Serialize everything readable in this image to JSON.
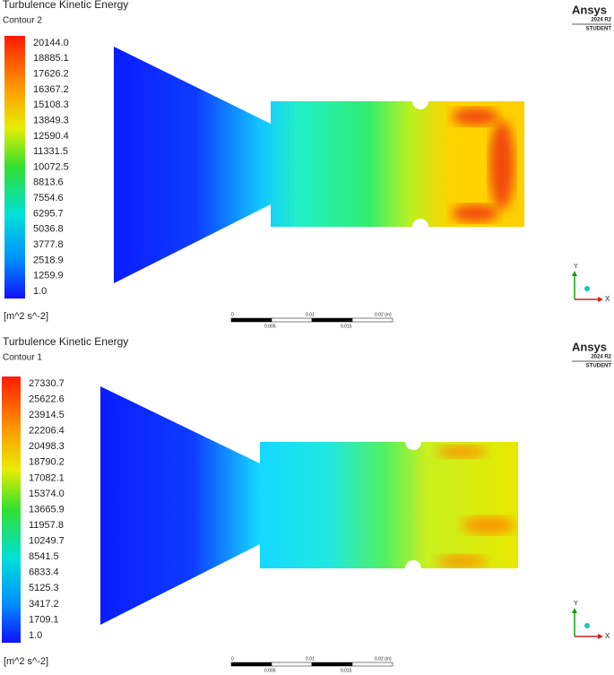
{
  "panels": [
    {
      "title": "Turbulence Kinetic Energy",
      "subtitle": "Contour 2",
      "legend_labels": [
        "20144.0",
        "18885.1",
        "17626.2",
        "16367.2",
        "15108.3",
        "13849.3",
        "12590.4",
        "11331.5",
        "10072.5",
        "8813.6",
        "7554.6",
        "6295.7",
        "5036.8",
        "3777.8",
        "2518.9",
        "1259.9",
        "1.0"
      ],
      "unit": "[m^2 s^-2]",
      "scale_labels": {
        "top": [
          "0",
          "0.01",
          "0.02 (m)"
        ],
        "bottom": [
          "0.005",
          "0.015"
        ]
      },
      "logo": {
        "brand": "Ansys",
        "version": "2024 R2",
        "edition": "STUDENT"
      },
      "axes": {
        "y": "Y",
        "x": "X"
      }
    },
    {
      "title": "Turbulence Kinetic Energy",
      "subtitle": "Contour 1",
      "legend_labels": [
        "27330.7",
        "25622.6",
        "23914.5",
        "22206.4",
        "20498.3",
        "18790.2",
        "17082.1",
        "15374.0",
        "13665.9",
        "11957.8",
        "10249.7",
        "8541.5",
        "6833.4",
        "5125.3",
        "3417.2",
        "1709.1",
        "1.0"
      ],
      "unit": "[m^2 s^-2]",
      "scale_labels": {
        "top": [
          "0",
          "0.01",
          "0.02 (m)"
        ],
        "bottom": [
          "0.005",
          "0.015"
        ]
      },
      "logo": {
        "brand": "Ansys",
        "version": "2024 R2",
        "edition": "STUDENT"
      },
      "axes": {
        "y": "Y",
        "x": "X"
      }
    }
  ]
}
